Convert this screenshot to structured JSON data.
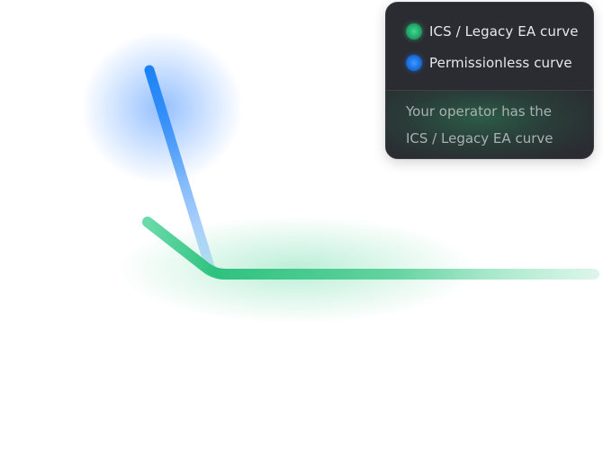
{
  "legend": {
    "items": [
      {
        "label": "ICS / Legacy EA curve",
        "color": "#2ec27e",
        "icon": "green-dot"
      },
      {
        "label": "Permissionless curve",
        "color": "#1f7cf0",
        "icon": "blue-dot"
      }
    ]
  },
  "callout": {
    "line1": "Your operator has the",
    "line2": "ICS / Legacy EA curve"
  },
  "colors": {
    "green_curve": "#2ec27e",
    "blue_curve": "#1f7cf0",
    "card_background": "#2a2c31"
  }
}
